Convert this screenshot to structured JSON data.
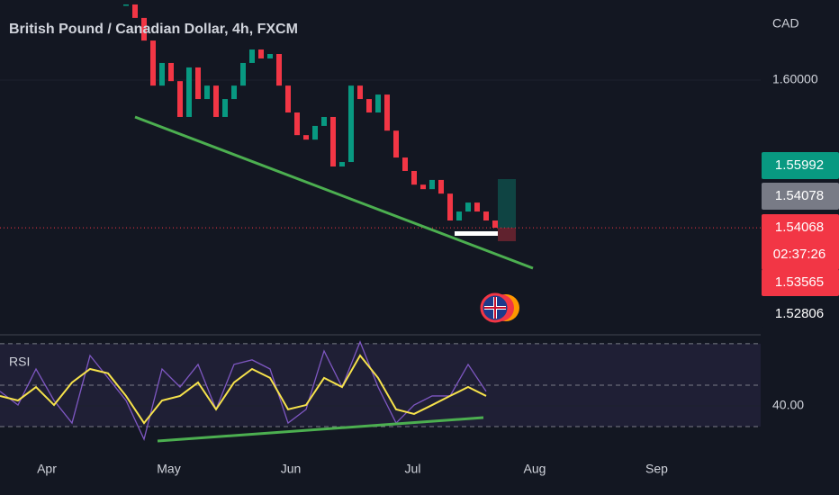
{
  "chart_data": [
    {
      "type": "candlestick",
      "title": "British Pound / Canadian Dollar, 4h, FXCM",
      "unit_label": "CAD",
      "values": [
        1.6304,
        1.625,
        1.6159,
        1.5978,
        1.6069,
        1.5996,
        1.5852,
        1.6051,
        1.5924,
        1.5978,
        1.5852,
        1.5924,
        1.5978,
        1.6069,
        1.6123,
        1.6087,
        1.6105,
        1.5978,
        1.587,
        1.5779,
        1.5761,
        1.5816,
        1.5852,
        1.5653,
        1.5671,
        1.5978,
        1.5924,
        1.587,
        1.5942,
        1.5797,
        1.5689,
        1.5635,
        1.558,
        1.5562,
        1.5599,
        1.5544,
        1.5436,
        1.5472,
        1.5508,
        1.5472,
        1.5436,
        1.5407
      ],
      "up_color": "#089981",
      "down_color": "#f23645",
      "ylim": [
        1.4984,
        1.6322
      ],
      "yticks": [
        {
          "value": 1.6,
          "label": "1.60000"
        }
      ],
      "price_tags": [
        {
          "value": 1.55992,
          "color": "#089981"
        },
        {
          "value": 1.54078,
          "color": "#787b86"
        },
        {
          "value": 1.54068,
          "color": "#f23645",
          "countdown": "02:37:26"
        },
        {
          "value": 1.53565,
          "color": "#f23645"
        },
        {
          "value": 1.52806,
          "color": "#131722"
        }
      ],
      "x_axis": [
        "Apr",
        "May",
        "Jun",
        "Jul",
        "Aug",
        "Sep"
      ]
    },
    {
      "type": "line",
      "title": "RSI",
      "series": [
        {
          "color": "#7e57c2",
          "values": [
            47.0,
            40.4,
            57.8,
            42.6,
            31.7,
            64.3,
            53.5,
            42.6,
            23.9,
            57.8,
            49.1,
            60.0,
            38.3,
            60.0,
            62.2,
            57.8,
            31.7,
            38.3,
            66.5,
            49.1,
            70.9,
            49.1,
            31.7,
            40.4,
            44.8,
            44.8,
            60.0,
            47.0
          ]
        },
        {
          "color": "#f7e34b",
          "values": [
            44.8,
            42.6,
            49.1,
            40.4,
            51.3,
            57.8,
            55.7,
            44.8,
            31.7,
            42.6,
            44.8,
            51.3,
            38.3,
            51.3,
            57.8,
            53.5,
            38.3,
            40.4,
            53.5,
            49.1,
            64.3,
            53.5,
            38.3,
            36.1,
            40.4,
            44.8,
            49.1,
            44.8
          ]
        }
      ],
      "ylim": [
        18.7,
        73.0
      ],
      "yticks": [
        {
          "value": 40,
          "label": "40.00"
        }
      ],
      "levels": [
        70,
        50,
        30
      ]
    }
  ]
}
